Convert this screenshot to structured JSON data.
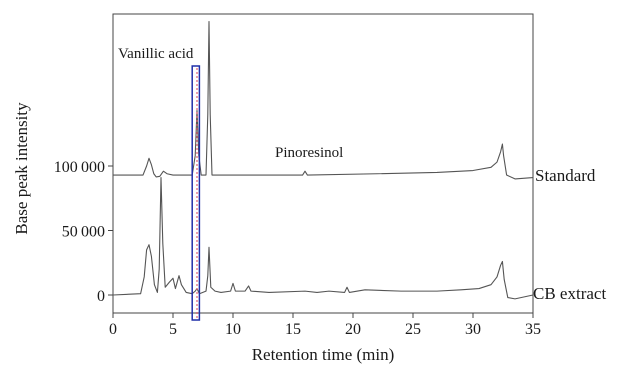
{
  "chart_data": {
    "type": "line",
    "title": "",
    "xlabel": "Retention time (min)",
    "ylabel": "Base peak intensity",
    "xlim": [
      0,
      35
    ],
    "xticks": [
      0,
      5,
      10,
      15,
      20,
      25,
      30,
      35
    ],
    "ylim": [
      -10000,
      180000
    ],
    "yticks": [
      0,
      50000,
      100000
    ],
    "ytick_labels": [
      "0",
      "50 000",
      "100 000"
    ],
    "grid": false,
    "legend": "none",
    "series": [
      {
        "name": "Standard",
        "baseline": 93000,
        "color": "#555555",
        "points": [
          [
            0.0,
            93000
          ],
          [
            2.5,
            93000
          ],
          [
            2.8,
            100000
          ],
          [
            3.0,
            106000
          ],
          [
            3.2,
            101000
          ],
          [
            3.4,
            94000
          ],
          [
            3.6,
            91500
          ],
          [
            3.9,
            92000
          ],
          [
            4.2,
            96000
          ],
          [
            4.5,
            94000
          ],
          [
            5.0,
            93000
          ],
          [
            6.6,
            93000
          ],
          [
            6.85,
            108000
          ],
          [
            7.0,
            143000
          ],
          [
            7.15,
            108000
          ],
          [
            7.35,
            93000
          ],
          [
            7.75,
            93000
          ],
          [
            7.9,
            140000
          ],
          [
            8.0,
            212000
          ],
          [
            8.1,
            140000
          ],
          [
            8.25,
            93000
          ],
          [
            15.8,
            93000
          ],
          [
            16.0,
            96000
          ],
          [
            16.2,
            93000
          ],
          [
            22.0,
            94000
          ],
          [
            27.0,
            95000
          ],
          [
            30.0,
            96500
          ],
          [
            31.5,
            99000
          ],
          [
            32.0,
            103000
          ],
          [
            32.3,
            111000
          ],
          [
            32.45,
            117000
          ],
          [
            32.55,
            108000
          ],
          [
            32.8,
            93000
          ],
          [
            33.5,
            90000
          ],
          [
            35.0,
            91000
          ]
        ]
      },
      {
        "name": "CB extract",
        "baseline": 0,
        "color": "#555555",
        "points": [
          [
            0.0,
            0
          ],
          [
            2.3,
            1000
          ],
          [
            2.6,
            14000
          ],
          [
            2.8,
            35000
          ],
          [
            3.0,
            39000
          ],
          [
            3.2,
            30000
          ],
          [
            3.45,
            8000
          ],
          [
            3.7,
            2000
          ],
          [
            3.85,
            20000
          ],
          [
            4.0,
            91000
          ],
          [
            4.15,
            40000
          ],
          [
            4.35,
            6000
          ],
          [
            4.7,
            10000
          ],
          [
            5.0,
            13000
          ],
          [
            5.2,
            5000
          ],
          [
            5.5,
            15000
          ],
          [
            5.7,
            8000
          ],
          [
            6.1,
            2000
          ],
          [
            6.6,
            1000
          ],
          [
            6.85,
            3000
          ],
          [
            7.0,
            5000
          ],
          [
            7.2,
            1000
          ],
          [
            7.75,
            3000
          ],
          [
            7.9,
            15000
          ],
          [
            8.0,
            37000
          ],
          [
            8.15,
            6000
          ],
          [
            8.5,
            3000
          ],
          [
            9.0,
            2000
          ],
          [
            9.8,
            3000
          ],
          [
            10.0,
            9000
          ],
          [
            10.2,
            3000
          ],
          [
            11.0,
            3000
          ],
          [
            11.3,
            7000
          ],
          [
            11.5,
            3000
          ],
          [
            13.0,
            2000
          ],
          [
            16.0,
            3000
          ],
          [
            17.0,
            2000
          ],
          [
            18.0,
            3000
          ],
          [
            19.3,
            2000
          ],
          [
            19.5,
            6000
          ],
          [
            19.7,
            2000
          ],
          [
            21.0,
            4000
          ],
          [
            24.0,
            3000
          ],
          [
            27.0,
            3000
          ],
          [
            29.0,
            4000
          ],
          [
            30.5,
            5000
          ],
          [
            31.5,
            8000
          ],
          [
            32.0,
            14000
          ],
          [
            32.3,
            23000
          ],
          [
            32.45,
            26000
          ],
          [
            32.6,
            12000
          ],
          [
            32.9,
            -2000
          ],
          [
            33.5,
            -3000
          ],
          [
            35.0,
            0
          ]
        ]
      }
    ],
    "annotations": [
      {
        "text": "Vanillic acid",
        "x": 6.0,
        "y": 210000
      },
      {
        "text": "Pinoresinol",
        "x": 18.0,
        "y": 117000
      }
    ],
    "highlight": {
      "x_range": [
        6.6,
        7.2
      ],
      "box_color": "#1f2fa8",
      "marker_x": 7.0,
      "marker_color": "#e0607a"
    }
  }
}
